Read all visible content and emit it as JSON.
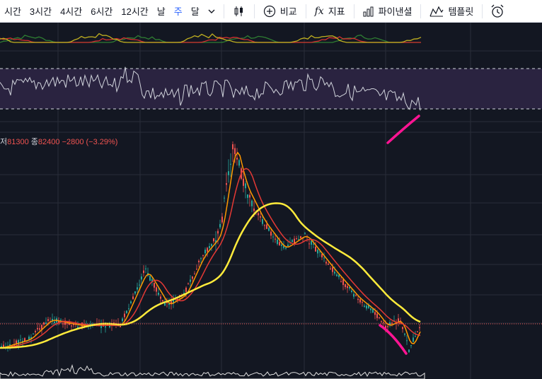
{
  "toolbar": {
    "timeframes": [
      {
        "label": "시간",
        "active": false
      },
      {
        "label": "3시간",
        "active": false
      },
      {
        "label": "4시간",
        "active": false
      },
      {
        "label": "6시간",
        "active": false
      },
      {
        "label": "12시간",
        "active": false
      },
      {
        "label": "날",
        "active": false
      },
      {
        "label": "주",
        "active": true
      },
      {
        "label": "달",
        "active": false
      }
    ],
    "compare_label": "비교",
    "indicators_label": "지표",
    "fx_glyph": "fx",
    "pine_label": "파이낸셜",
    "templates_label": "템플릿",
    "icons": [
      "chevron-down-icon",
      "candles-icon",
      "plus-circle-icon",
      "fx-icon",
      "financials-icon",
      "templates-icon",
      "alarm-icon"
    ]
  },
  "ohlc": {
    "low_prefix": "저",
    "low_value": "81300",
    "close_prefix": "종",
    "close_value": "82400",
    "change": "−2800",
    "change_pct": "(−3.29%)"
  },
  "colors": {
    "background": "#131722",
    "up": "#26a69a",
    "down": "#ef5350",
    "ma_short": "#ff9800",
    "ma_mid": "#e53935",
    "ma_long": "#ffeb3b",
    "rsi_line": "#d1d4dc",
    "rsi_band": "#2a2340",
    "annotation": "#ff1493",
    "oscillator_green": "#2e7d32",
    "oscillator_yellow": "#c0b020",
    "oscillator_red": "#d32f2f",
    "grid": "#2a2e39"
  }
}
